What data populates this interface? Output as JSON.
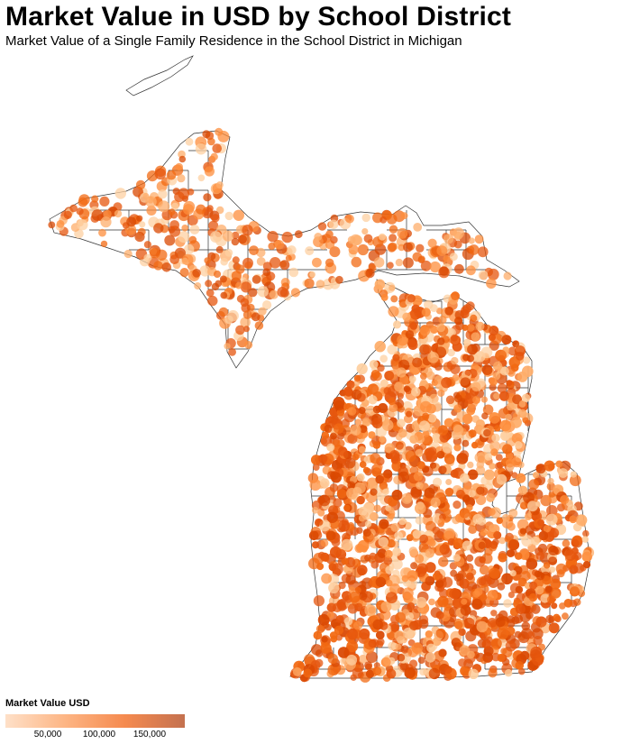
{
  "header": {
    "title": "Market Value in USD by School District",
    "subtitle": "Market Value of a Single Family Residence in the School District in Michigan"
  },
  "legend": {
    "title": "Market Value USD",
    "ticks": [
      "50,000",
      "100,000",
      "150,000"
    ],
    "tick_values": [
      50000,
      100000,
      150000
    ],
    "domain": [
      0,
      180000
    ],
    "colors": [
      "#fee0c8",
      "#fdb584",
      "#f58a4f",
      "#e0641c",
      "#c4714f"
    ]
  },
  "map_style": {
    "district_border_color": "#333333",
    "dot_colors": [
      "#fdd0a2",
      "#fdae6b",
      "#fd8d3c",
      "#f16913",
      "#d94801",
      "#e6550d"
    ]
  }
}
